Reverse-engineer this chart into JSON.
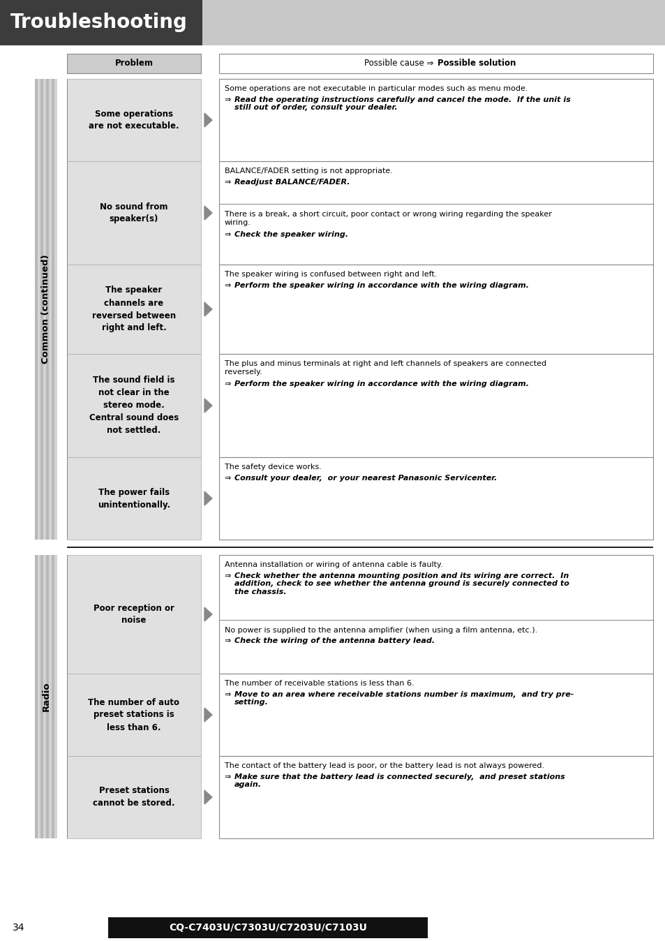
{
  "title": "Troubleshooting",
  "page_num": "34",
  "model": "CQ-C7403U/C7303U/C7203U/C7103U",
  "header_dark_bg": "#3c3c3c",
  "header_light_bg": "#c8c8c8",
  "stripe_bg": "#d8d8d8",
  "stripe_dark": "#aaaaaa",
  "prob_bg": "#e0e0e0",
  "sol_bg": "#ffffff",
  "border_color": "#888888",
  "hdr_prob_bg": "#cccccc",
  "rows": [
    {
      "section": "Common (continued)",
      "problem": "Some operations\nare not executable.",
      "cause": "Some operations are not executable in particular modes such as menu mode.",
      "solution": "Read the operating instructions carefully and cancel the mode.  If the unit is\nstill out of order, consult your dealer.",
      "split": false
    },
    {
      "section": "Common (continued)",
      "problem": "No sound from\nspeaker(s)",
      "cause": "BALANCE/FADER setting is not appropriate.",
      "solution": "Readjust BALANCE/FADER.",
      "cause2": "There is a break, a short circuit, poor contact or wrong wiring regarding the speaker\nwiring.",
      "solution2": "Check the speaker wiring.",
      "split": true
    },
    {
      "section": "Common (continued)",
      "problem": "The speaker\nchannels are\nreversed between\nright and left.",
      "cause": "The speaker wiring is confused between right and left.",
      "solution": "Perform the speaker wiring in accordance with the wiring diagram.",
      "split": false
    },
    {
      "section": "Common (continued)",
      "problem": "The sound field is\nnot clear in the\nstereo mode.\nCentral sound does\nnot settled.",
      "cause": "The plus and minus terminals at right and left channels of speakers are connected\nreversely.",
      "solution": "Perform the speaker wiring in accordance with the wiring diagram.",
      "split": false
    },
    {
      "section": "Common (continued)",
      "problem": "The power fails\nunintentionally.",
      "cause": "The safety device works.",
      "solution": "Consult your dealer,  or your nearest Panasonic Servicenter.",
      "split": false
    },
    {
      "section": "Radio",
      "problem": "Poor reception or\nnoise",
      "cause": "Antenna installation or wiring of antenna cable is faulty.",
      "solution": "Check whether the antenna mounting position and its wiring are correct.  In\naddition, check to see whether the antenna ground is securely connected to\nthe chassis.",
      "cause2": "No power is supplied to the antenna amplifier (when using a film antenna, etc.).",
      "solution2": "Check the wiring of the antenna battery lead.",
      "split": true
    },
    {
      "section": "Radio",
      "problem": "The number of auto\npreset stations is\nless than 6.",
      "cause": "The number of receivable stations is less than 6.",
      "solution": "Move to an area where receivable stations number is maximum,  and try pre-\nsetting.",
      "split": false
    },
    {
      "section": "Radio",
      "problem": "Preset stations\ncannot be stored.",
      "cause": "The contact of the battery lead is poor, or the battery lead is not always powered.",
      "solution": "Make sure that the battery lead is connected securely,  and preset stations\nagain.",
      "split": false
    }
  ]
}
